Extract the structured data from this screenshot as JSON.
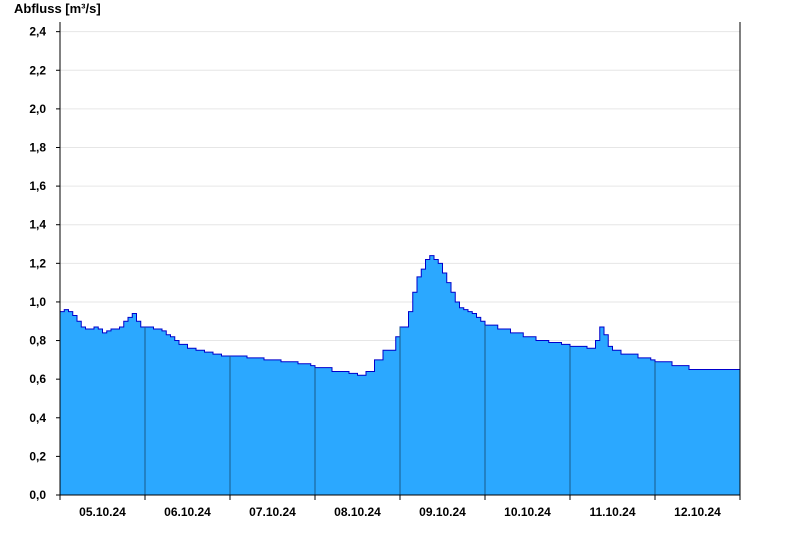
{
  "chart_data": {
    "type": "area",
    "ylabel": "Abfluss [m³/s]",
    "ylim": [
      0,
      2.45
    ],
    "y_ticks": [
      0.0,
      0.2,
      0.4,
      0.6,
      0.8,
      1.0,
      1.2,
      1.4,
      1.6,
      1.8,
      2.0,
      2.2,
      2.4
    ],
    "y_tick_labels": [
      "0,0",
      "0,2",
      "0,4",
      "0,6",
      "0,8",
      "1,0",
      "1,2",
      "1,4",
      "1,6",
      "1,8",
      "2,0",
      "2,2",
      "2,4"
    ],
    "x_range_days": [
      0,
      8
    ],
    "x_tick_labels": [
      "05.10.24",
      "06.10.24",
      "07.10.24",
      "08.10.24",
      "09.10.24",
      "10.10.24",
      "11.10.24",
      "12.10.24"
    ],
    "grid": true,
    "colors": {
      "fill": "#2ba8ff",
      "line": "#0000cc",
      "grid": "#e6e6e6",
      "axis": "#000000",
      "day_separator": "#1a5a8a"
    },
    "series": [
      {
        "x": [
          0.0,
          0.05,
          0.1,
          0.15,
          0.2,
          0.25,
          0.3,
          0.35,
          0.4,
          0.45,
          0.5,
          0.55,
          0.6,
          0.65,
          0.7,
          0.75,
          0.8,
          0.85,
          0.9,
          0.95,
          1.0,
          1.1,
          1.2,
          1.25,
          1.3,
          1.35,
          1.4,
          1.5,
          1.6,
          1.7,
          1.8,
          1.9,
          2.0,
          2.2,
          2.4,
          2.6,
          2.8,
          2.95,
          3.0,
          3.2,
          3.4,
          3.5,
          3.6,
          3.7,
          3.8,
          3.95,
          4.0,
          4.1,
          4.15,
          4.2,
          4.25,
          4.3,
          4.35,
          4.4,
          4.45,
          4.5,
          4.55,
          4.6,
          4.65,
          4.7,
          4.75,
          4.8,
          4.85,
          4.9,
          4.95,
          5.0,
          5.15,
          5.3,
          5.45,
          5.6,
          5.75,
          5.9,
          6.0,
          6.2,
          6.3,
          6.35,
          6.4,
          6.45,
          6.5,
          6.6,
          6.8,
          6.95,
          7.0,
          7.2,
          7.4,
          7.6,
          7.8,
          8.0
        ],
        "y": [
          0.95,
          0.96,
          0.95,
          0.93,
          0.9,
          0.87,
          0.86,
          0.86,
          0.87,
          0.86,
          0.84,
          0.85,
          0.86,
          0.86,
          0.87,
          0.9,
          0.92,
          0.94,
          0.9,
          0.87,
          0.87,
          0.86,
          0.85,
          0.83,
          0.82,
          0.8,
          0.78,
          0.76,
          0.75,
          0.74,
          0.73,
          0.72,
          0.72,
          0.71,
          0.7,
          0.69,
          0.68,
          0.67,
          0.66,
          0.64,
          0.63,
          0.62,
          0.64,
          0.7,
          0.75,
          0.82,
          0.87,
          0.95,
          1.05,
          1.13,
          1.17,
          1.22,
          1.24,
          1.22,
          1.2,
          1.15,
          1.1,
          1.05,
          1.0,
          0.97,
          0.96,
          0.95,
          0.94,
          0.92,
          0.9,
          0.88,
          0.86,
          0.84,
          0.82,
          0.8,
          0.79,
          0.78,
          0.77,
          0.76,
          0.8,
          0.87,
          0.83,
          0.77,
          0.75,
          0.73,
          0.71,
          0.7,
          0.69,
          0.67,
          0.65,
          0.65,
          0.65,
          0.65
        ]
      }
    ]
  }
}
